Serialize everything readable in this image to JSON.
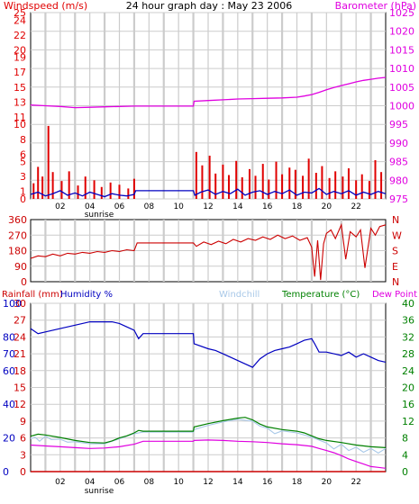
{
  "chart_data": [
    {
      "type": "line",
      "title": "24 hour graph day : May 23 2006",
      "left_axis_label": "Windspeed (m/s)",
      "right_axis_label": "Barometer (hPa)",
      "x_ticks": [
        "02",
        "04",
        "06",
        "08",
        "10",
        "12",
        "14",
        "16",
        "18",
        "20",
        "22"
      ],
      "x_sub_label": "sunrise",
      "left_ticks": [
        "0",
        "1",
        "3",
        "5",
        "6",
        "8",
        "10",
        "11",
        "13",
        "15",
        "17",
        "19",
        "20",
        "22",
        "24",
        "25"
      ],
      "right_ticks": [
        "975",
        "980",
        "985",
        "990",
        "995",
        "1000",
        "1005",
        "1010",
        "1015",
        "1020",
        "1025"
      ],
      "ylim_left": [
        0,
        25
      ],
      "ylim_right": [
        975,
        1025
      ],
      "xlim": [
        0,
        24
      ],
      "series": [
        {
          "name": "Barometer",
          "axis": "right",
          "color": "#e000e0",
          "x": [
            0,
            1,
            2,
            3,
            4,
            5,
            6,
            7,
            8,
            9,
            10,
            11,
            11.05,
            12,
            13,
            14,
            15,
            16,
            17,
            18,
            18.5,
            19,
            19.5,
            20,
            20.5,
            21,
            21.5,
            22,
            22.5,
            23,
            23.5,
            24
          ],
          "y": [
            1000.2,
            1000,
            999.8,
            999.5,
            999.6,
            999.7,
            999.8,
            999.9,
            999.9,
            999.9,
            999.9,
            999.9,
            1001.2,
            1001.4,
            1001.6,
            1001.8,
            1001.9,
            1002,
            1002.1,
            1002.3,
            1002.6,
            1003,
            1003.6,
            1004.3,
            1004.9,
            1005.4,
            1005.9,
            1006.4,
            1006.8,
            1007.1,
            1007.4,
            1007.6
          ]
        },
        {
          "name": "Windspeed average",
          "axis": "left",
          "color": "#0000c0",
          "x": [
            0,
            0.5,
            1,
            1.5,
            2,
            2.5,
            3,
            3.5,
            4,
            4.5,
            5,
            5.5,
            6,
            6.5,
            7,
            7.1,
            11,
            11.1,
            11.5,
            12,
            12.5,
            13,
            13.5,
            14,
            14.5,
            15,
            15.5,
            16,
            16.5,
            17,
            17.5,
            18,
            18.5,
            19,
            19.5,
            20,
            20.5,
            21,
            21.5,
            22,
            22.5,
            23,
            23.5,
            24
          ],
          "y": [
            0.6,
            0.9,
            0.4,
            0.7,
            1.1,
            0.5,
            0.8,
            0.4,
            0.9,
            0.6,
            0.3,
            0.7,
            0.5,
            0.4,
            0.6,
            1.1,
            1.1,
            0.5,
            0.9,
            1.2,
            0.6,
            1,
            0.7,
            1.3,
            0.5,
            0.9,
            1.1,
            0.6,
            1,
            0.7,
            1.2,
            0.5,
            0.9,
            0.8,
            1.4,
            0.6,
            1,
            0.7,
            1.1,
            0.5,
            0.9,
            0.6,
            1,
            0.7
          ]
        },
        {
          "name": "Windspeed gust",
          "axis": "left",
          "color": "#e00000",
          "x": [
            0.2,
            0.5,
            0.8,
            1.2,
            1.5,
            2.1,
            2.6,
            3.2,
            3.7,
            4.3,
            4.8,
            5.4,
            6,
            6.6,
            7,
            11.2,
            11.6,
            12.1,
            12.5,
            13,
            13.4,
            13.9,
            14.3,
            14.8,
            15.2,
            15.7,
            16.1,
            16.6,
            17,
            17.5,
            17.9,
            18.4,
            18.8,
            19.3,
            19.7,
            20.2,
            20.6,
            21.1,
            21.5,
            22,
            22.4,
            22.9,
            23.3,
            23.7
          ],
          "y": [
            2.1,
            4.3,
            3,
            9.8,
            3.6,
            2.4,
            3.7,
            1.8,
            3,
            2.5,
            1.6,
            2.2,
            1.9,
            1.4,
            2.7,
            6.3,
            4.5,
            5.8,
            3.4,
            4.6,
            3.2,
            5.1,
            2.9,
            4,
            3.1,
            4.7,
            2.6,
            5,
            3.3,
            4.2,
            3.9,
            3.1,
            5.4,
            3.5,
            4.4,
            2.8,
            3.7,
            3,
            4.1,
            2.5,
            3.3,
            2.4,
            5.2,
            3.6
          ]
        }
      ]
    },
    {
      "type": "line",
      "left_ticks": [
        "0",
        "90",
        "180",
        "270",
        "360"
      ],
      "right_ticks": [
        "N",
        "E",
        "S",
        "W",
        "N"
      ],
      "ylim": [
        0,
        360
      ],
      "xlim": [
        0,
        24
      ],
      "series": [
        {
          "name": "Wind direction",
          "color": "#cc0000",
          "x": [
            0,
            0.5,
            1,
            1.5,
            2,
            2.5,
            3,
            3.5,
            4,
            4.5,
            5,
            5.5,
            6,
            6.5,
            7,
            7.2,
            11,
            11.2,
            11.7,
            12.2,
            12.7,
            13.2,
            13.7,
            14.2,
            14.7,
            15.2,
            15.7,
            16.2,
            16.7,
            17.2,
            17.7,
            18.2,
            18.7,
            19,
            19.2,
            19.4,
            19.6,
            19.8,
            20,
            20.3,
            20.6,
            21,
            21.3,
            21.6,
            22,
            22.3,
            22.6,
            23,
            23.3,
            23.6,
            24
          ],
          "y": [
            135,
            150,
            145,
            160,
            150,
            165,
            160,
            170,
            165,
            175,
            170,
            180,
            175,
            185,
            180,
            225,
            225,
            205,
            230,
            215,
            235,
            220,
            245,
            230,
            250,
            240,
            260,
            245,
            270,
            250,
            265,
            240,
            255,
            200,
            30,
            240,
            10,
            220,
            280,
            300,
            250,
            330,
            130,
            290,
            260,
            300,
            80,
            310,
            270,
            320,
            330
          ]
        }
      ]
    },
    {
      "type": "line",
      "legend": [
        "Rainfall (mm)",
        "Humidity %",
        "Windchill",
        "Temperature (°C)",
        "Dew Point"
      ],
      "x_ticks": [
        "02",
        "04",
        "06",
        "08",
        "10",
        "12",
        "14",
        "16",
        "18",
        "20",
        "22"
      ],
      "x_sub_label": "sunrise",
      "rain_ticks": [
        "0",
        "3",
        "6",
        "9",
        "12",
        "15",
        "18",
        "21",
        "24",
        "27",
        "30"
      ],
      "humidity_ticks": [
        "0",
        "20",
        "40",
        "60",
        "70",
        "80",
        "100"
      ],
      "temperature_ticks": [
        "0",
        "4",
        "8",
        "12",
        "16",
        "20",
        "24",
        "28",
        "32",
        "36",
        "40"
      ],
      "ylim_temperature": [
        0,
        40
      ],
      "ylim_humidity": [
        0,
        100
      ],
      "ylim_rain": [
        0,
        30
      ],
      "xlim": [
        0,
        24
      ],
      "series": [
        {
          "name": "Humidity",
          "axis": "humidity",
          "color": "#0000c0",
          "x": [
            0,
            0.5,
            1,
            2,
            3,
            4,
            5,
            5.5,
            6,
            6.5,
            7,
            7.3,
            7.6,
            11,
            11.05,
            12,
            12.5,
            13,
            13.5,
            14,
            14.5,
            15,
            15.5,
            16,
            16.5,
            17,
            17.5,
            18,
            18.5,
            19,
            19.2,
            19.5,
            20,
            20.5,
            21,
            21.5,
            22,
            22.5,
            23,
            23.5,
            24
          ],
          "y": [
            85,
            82,
            83,
            85,
            87,
            89,
            89,
            89,
            88,
            86,
            84,
            79,
            82,
            82,
            76,
            73,
            72,
            70,
            68,
            66,
            64,
            62,
            67,
            70,
            72,
            73,
            74,
            76,
            78,
            79,
            76,
            71,
            71,
            70,
            69,
            71,
            68,
            70,
            68,
            66,
            65
          ]
        },
        {
          "name": "Temperature",
          "axis": "temperature",
          "color": "#008000",
          "x": [
            0,
            0.5,
            1,
            2,
            3,
            4,
            5,
            5.5,
            6,
            6.5,
            7,
            7.3,
            7.6,
            11,
            11.05,
            12,
            13,
            14,
            14.5,
            15,
            15.5,
            16,
            17,
            18,
            18.5,
            19,
            19.5,
            20,
            21,
            22,
            23,
            24
          ],
          "y": [
            8.4,
            8.9,
            8.7,
            8.1,
            7.4,
            6.9,
            6.8,
            7.3,
            8,
            8.5,
            9.2,
            9.8,
            9.6,
            9.6,
            10.6,
            11.4,
            12.1,
            12.7,
            12.9,
            12.3,
            11.3,
            10.6,
            10,
            9.6,
            9.2,
            8.5,
            7.8,
            7.4,
            6.9,
            6.3,
            5.9,
            5.7
          ]
        },
        {
          "name": "Windchill",
          "axis": "temperature",
          "color": "#a8c8e8",
          "x": [
            0,
            0.3,
            0.6,
            1,
            1.4,
            2,
            2.5,
            3,
            4,
            5,
            6,
            7,
            7.6,
            11,
            11.05,
            12,
            13,
            14,
            15,
            15.5,
            16,
            16.5,
            17,
            18,
            19,
            20,
            20.5,
            21,
            21.5,
            22,
            22.5,
            23,
            23.5,
            24
          ],
          "y": [
            7.8,
            8.2,
            7.2,
            8.4,
            7.6,
            7.7,
            7,
            7.1,
            6.6,
            6.6,
            7.8,
            9,
            9.4,
            9.4,
            10,
            11,
            11.8,
            12.4,
            12,
            10.8,
            10.3,
            9,
            9.7,
            9.2,
            8.2,
            6.8,
            5.4,
            6.5,
            5,
            5.8,
            4.6,
            5.5,
            4.4,
            5.5
          ]
        },
        {
          "name": "Dew Point",
          "axis": "temperature",
          "color": "#e000e0",
          "x": [
            0,
            1,
            2,
            3,
            4,
            5,
            6,
            7,
            7.6,
            11,
            11.05,
            12,
            13,
            14,
            15,
            16,
            17,
            18,
            19,
            19.5,
            20,
            20.5,
            21,
            21.5,
            22,
            22.5,
            23,
            23.5,
            24
          ],
          "y": [
            6.3,
            6.1,
            5.9,
            5.7,
            5.5,
            5.6,
            5.9,
            6.5,
            7.2,
            7.2,
            7.4,
            7.5,
            7.4,
            7.2,
            7.1,
            6.9,
            6.6,
            6.4,
            6,
            5.5,
            5,
            4.5,
            3.8,
            3,
            2.4,
            1.8,
            1.2,
            1,
            0.8
          ]
        },
        {
          "name": "Rainfall",
          "axis": "rain",
          "color": "#cc0000",
          "x": [
            0,
            24
          ],
          "y": [
            0,
            0
          ]
        }
      ]
    }
  ]
}
